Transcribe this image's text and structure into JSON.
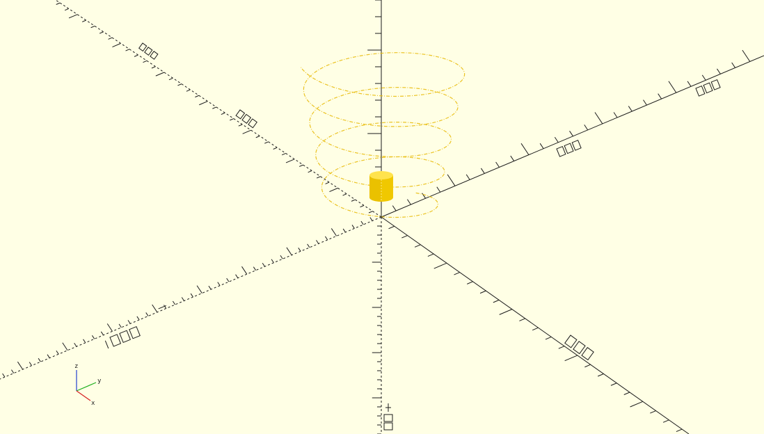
{
  "viewport": {
    "background": "#ffffe5",
    "axis_color": "#1a1a1a",
    "helix_color": "#e8b800",
    "model_color": "#f5d000"
  },
  "axis_gizmo": {
    "labels": {
      "x": "x",
      "y": "y",
      "z": "z"
    },
    "colors": {
      "x": "#d62020",
      "y": "#20b020",
      "z": "#2040d0"
    }
  },
  "model": {
    "name": "cylinder"
  }
}
